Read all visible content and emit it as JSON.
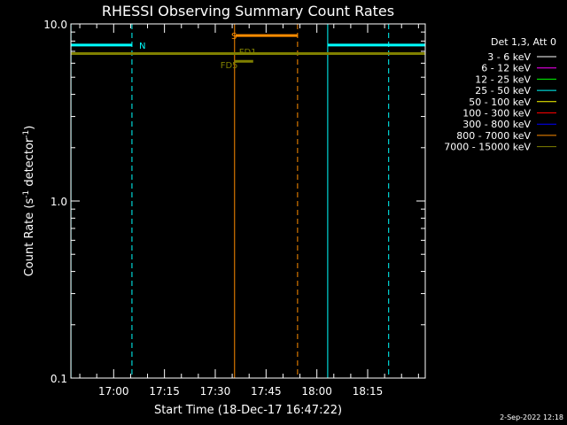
{
  "chart_data": {
    "type": "line",
    "title": "RHESSI Observing Summary Count Rates",
    "xlabel": "Start Time (18-Dec-17 16:47:22)",
    "ylabel_main": "Count Rate (s",
    "ylabel_sup1": "-1",
    "ylabel_mid": " detector",
    "ylabel_sup2": "-1",
    "ylabel_end": ")",
    "x_tick_labels": [
      "17:00",
      "17:15",
      "17:30",
      "17:45",
      "18:00",
      "18:15"
    ],
    "x_tick_minutes": [
      1020,
      1035,
      1050,
      1065,
      1080,
      1095
    ],
    "xlim_minutes": [
      1007.3667,
      1112
    ],
    "y_scale": "log",
    "ylim": [
      0.1,
      10.0
    ],
    "y_tick_labels": [
      "0.1",
      "1.0",
      "10.0"
    ],
    "legend": {
      "placement": "top-right",
      "header": "Det 1,3, Att 0",
      "entries": [
        {
          "label": "3 - 6 keV",
          "color": "#ffffff"
        },
        {
          "label": "6 - 12 keV",
          "color": "#ff00ff"
        },
        {
          "label": "12 - 25 keV",
          "color": "#00ff00"
        },
        {
          "label": "25 - 50 keV",
          "color": "#00ffff"
        },
        {
          "label": "50 - 100 keV",
          "color": "#ffff00"
        },
        {
          "label": "100 - 300 keV",
          "color": "#ff0000"
        },
        {
          "label": "300 - 800 keV",
          "color": "#0000ff"
        },
        {
          "label": "800 - 7000 keV",
          "color": "#ff8c00"
        },
        {
          "label": "7000 - 15000 keV",
          "color": "#808000"
        }
      ]
    },
    "series": [
      {
        "color": "#00ffff",
        "width": 3,
        "segments": [
          [
            1007.4,
            1025.4,
            7.6
          ],
          [
            1083.2,
            1112,
            7.6
          ]
        ]
      },
      {
        "color": "#808000",
        "width": 3,
        "segments": [
          [
            1007.4,
            1112,
            6.8
          ]
        ]
      },
      {
        "color": "#ff8c00",
        "width": 3,
        "segments": [
          [
            1056,
            1074.3,
            8.6
          ]
        ]
      },
      {
        "color": "#808000",
        "width": 3,
        "segments": [
          [
            1055.7,
            1061.2,
            6.15
          ]
        ]
      }
    ],
    "annotations": [
      {
        "text": "N",
        "color": "#00ffff",
        "x": 1027.5,
        "y": 7.6
      },
      {
        "text": "S",
        "color": "#ff8c00",
        "x": 1054.7,
        "y": 8.6
      },
      {
        "text": "FD1",
        "color": "#808000",
        "x": 1057.0,
        "y": 7.0
      },
      {
        "text": "FD5",
        "color": "#808000",
        "x": 1051.5,
        "y": 5.9
      }
    ],
    "vlines": [
      {
        "x": 1007.4,
        "color": "#00ffff",
        "dashed": false
      },
      {
        "x": 1025.4,
        "color": "#00ffff",
        "dashed": true
      },
      {
        "x": 1055.7,
        "color": "#ff8c00",
        "dashed": false
      },
      {
        "x": 1074.3,
        "color": "#ff8c00",
        "dashed": true
      },
      {
        "x": 1083.2,
        "color": "#00ffff",
        "dashed": false
      },
      {
        "x": 1101.2,
        "color": "#00ffff",
        "dashed": true
      }
    ],
    "footer_timestamp": "2-Sep-2022 12:18"
  }
}
